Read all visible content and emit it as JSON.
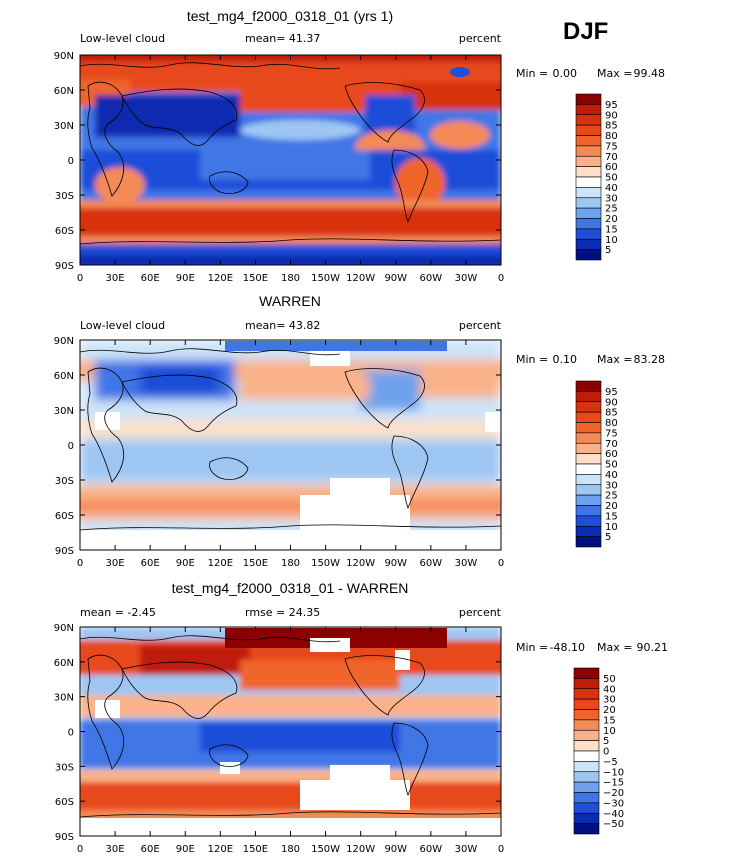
{
  "figure": {
    "season": "DJF",
    "lat_ticks": [
      "90N",
      "60N",
      "30N",
      "0",
      "30S",
      "60S",
      "90S"
    ],
    "lon_ticks": [
      "0",
      "30E",
      "60E",
      "90E",
      "120E",
      "150E",
      "180",
      "150W",
      "120W",
      "90W",
      "60W",
      "30W",
      "0"
    ],
    "min_label": "Min =",
    "max_label": "Max ="
  },
  "chart_data": [
    {
      "type": "heatmap",
      "title": "test_mg4_f2000_0318_01 (yrs 1)",
      "left_label": "Low-level cloud",
      "center_label": "mean=  41.37",
      "units": "percent",
      "min_value": "0.00",
      "max_value": "99.48",
      "colorbar_levels": [
        "95",
        "90",
        "85",
        "80",
        "75",
        "70",
        "60",
        "50",
        "40",
        "30",
        "25",
        "20",
        "15",
        "10",
        "5"
      ],
      "colorbar_colors": [
        "#8b0000",
        "#bf1d0a",
        "#d8330f",
        "#e8481a",
        "#f0652c",
        "#f48a55",
        "#f9b28a",
        "#fce0c9",
        "#ffffff",
        "#cde3f8",
        "#9ec6f3",
        "#6ea2ec",
        "#3f76e6",
        "#1f4ed8",
        "#0a2cb0",
        "#001080"
      ]
    },
    {
      "type": "heatmap",
      "title": "WARREN",
      "left_label": "Low-level cloud",
      "center_label": "mean=  43.82",
      "units": "percent",
      "min_value": "0.10",
      "max_value": "83.28",
      "colorbar_levels": [
        "95",
        "90",
        "85",
        "80",
        "75",
        "70",
        "60",
        "50",
        "40",
        "30",
        "25",
        "20",
        "15",
        "10",
        "5"
      ],
      "colorbar_colors": [
        "#8b0000",
        "#bf1d0a",
        "#d8330f",
        "#e8481a",
        "#f0652c",
        "#f48a55",
        "#f9b28a",
        "#fce0c9",
        "#ffffff",
        "#cde3f8",
        "#9ec6f3",
        "#6ea2ec",
        "#3f76e6",
        "#1f4ed8",
        "#0a2cb0",
        "#001080"
      ]
    },
    {
      "type": "heatmap",
      "title": "test_mg4_f2000_0318_01 - WARREN",
      "left_label": "mean =  -2.45",
      "center_label": "rmse =  24.35",
      "units": "percent",
      "min_value": "-48.10",
      "max_value": "90.21",
      "colorbar_levels": [
        "50",
        "40",
        "30",
        "20",
        "15",
        "10",
        "5",
        "0",
        "−5",
        "−10",
        "−15",
        "−20",
        "−30",
        "−40",
        "−50"
      ],
      "colorbar_colors": [
        "#8b0000",
        "#bf1d0a",
        "#d8330f",
        "#e8481a",
        "#f0652c",
        "#f48a55",
        "#f9b28a",
        "#fce0c9",
        "#ffffff",
        "#cde3f8",
        "#9ec6f3",
        "#6ea2ec",
        "#3f76e6",
        "#1f4ed8",
        "#0a2cb0",
        "#001080"
      ]
    }
  ]
}
